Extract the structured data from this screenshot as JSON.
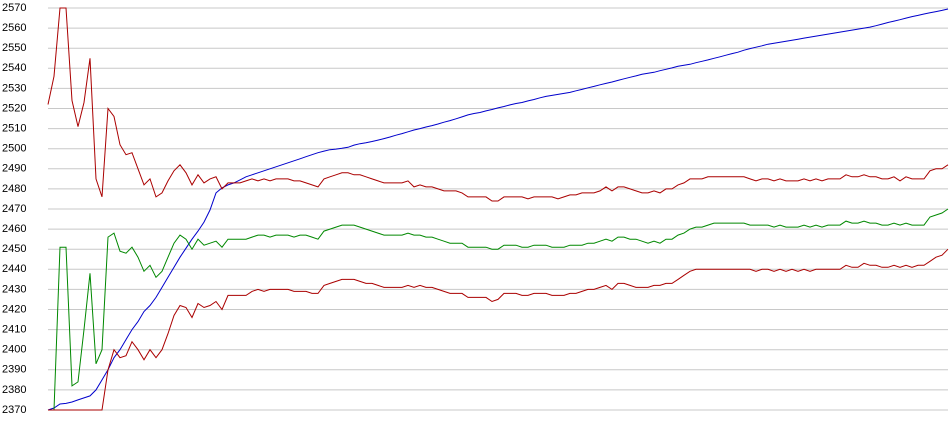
{
  "chart_data": {
    "type": "line",
    "title": "",
    "xlabel": "",
    "ylabel": "",
    "ylim": [
      2370,
      2570
    ],
    "y_ticks": [
      2370,
      2380,
      2390,
      2400,
      2410,
      2420,
      2430,
      2440,
      2450,
      2460,
      2470,
      2480,
      2490,
      2500,
      2510,
      2520,
      2530,
      2540,
      2550,
      2560,
      2570
    ],
    "grid": true,
    "legend": "none",
    "x": [
      0,
      1,
      2,
      3,
      4,
      5,
      6,
      7,
      8,
      9,
      10,
      11,
      12,
      13,
      14,
      15,
      16,
      17,
      18,
      19,
      20,
      21,
      22,
      23,
      24,
      25,
      26,
      27,
      28,
      29,
      30,
      31,
      32,
      33,
      34,
      35,
      36,
      37,
      38,
      39,
      40,
      41,
      42,
      43,
      44,
      45,
      46,
      47,
      48,
      49,
      50,
      51,
      52,
      53,
      54,
      55,
      56,
      57,
      58,
      59,
      60,
      61,
      62,
      63,
      64,
      65,
      66,
      67,
      68,
      69,
      70,
      71,
      72,
      73,
      74,
      75,
      76,
      77,
      78,
      79,
      80,
      81,
      82,
      83,
      84,
      85,
      86,
      87,
      88,
      89,
      90,
      91,
      92,
      93,
      94,
      95,
      96,
      97,
      98,
      99,
      100,
      101,
      102,
      103,
      104,
      105,
      106,
      107,
      108,
      109,
      110,
      111,
      112,
      113,
      114,
      115,
      116,
      117,
      118,
      119,
      120,
      121,
      122,
      123,
      124,
      125,
      126,
      127,
      128,
      129,
      130,
      131,
      132,
      133,
      134,
      135,
      136,
      137,
      138,
      139,
      140,
      141,
      142,
      143,
      144,
      145,
      146,
      147,
      148,
      149,
      150
    ],
    "series": [
      {
        "color": "#0000cc",
        "values": [
          2370.0,
          2371.0,
          2373.0,
          2373.3,
          2374.0,
          2375.0,
          2376.0,
          2377.0,
          2380.0,
          2385.0,
          2390.0,
          2396.0,
          2400.0,
          2405.0,
          2410.0,
          2414.0,
          2419.0,
          2422.0,
          2426.0,
          2431.0,
          2436.0,
          2441.0,
          2446.0,
          2450.5,
          2455.0,
          2459.0,
          2463.5,
          2469.5,
          2478.0,
          2480.5,
          2482.0,
          2483.0,
          2484.5,
          2486.0,
          2487.0,
          2488.0,
          2489.0,
          2490.0,
          2491.0,
          2492.0,
          2493.0,
          2494.0,
          2495.0,
          2496.0,
          2497.0,
          2498.0,
          2498.8,
          2499.5,
          2499.8,
          2500.2,
          2500.7,
          2501.8,
          2502.5,
          2503.0,
          2503.6,
          2504.3,
          2505.0,
          2505.8,
          2506.7,
          2507.5,
          2508.4,
          2509.3,
          2510.0,
          2510.8,
          2511.5,
          2512.3,
          2513.2,
          2514.0,
          2514.9,
          2515.8,
          2516.8,
          2517.5,
          2518.0,
          2518.8,
          2519.5,
          2520.3,
          2521.0,
          2521.8,
          2522.5,
          2523.0,
          2523.8,
          2524.5,
          2525.3,
          2526.0,
          2526.5,
          2527.0,
          2527.5,
          2528.0,
          2528.8,
          2529.5,
          2530.3,
          2531.0,
          2531.8,
          2532.5,
          2533.2,
          2534.0,
          2534.8,
          2535.5,
          2536.2,
          2537.0,
          2537.5,
          2538.0,
          2538.8,
          2539.5,
          2540.2,
          2541.0,
          2541.5,
          2542.0,
          2542.8,
          2543.5,
          2544.2,
          2545.0,
          2545.7,
          2546.5,
          2547.3,
          2548.0,
          2549.0,
          2549.8,
          2550.5,
          2551.2,
          2552.0,
          2552.5,
          2553.0,
          2553.5,
          2554.0,
          2554.5,
          2555.0,
          2555.5,
          2556.0,
          2556.5,
          2557.0,
          2557.5,
          2558.0,
          2558.5,
          2559.0,
          2559.5,
          2560.0,
          2560.5,
          2561.2,
          2562.0,
          2562.8,
          2563.5,
          2564.2,
          2565.0,
          2565.7,
          2566.3,
          2567.0,
          2567.6,
          2568.2,
          2568.8,
          2569.5
        ]
      },
      {
        "color": "#aa0000",
        "values": [
          2522,
          2536,
          2570,
          2570,
          2524,
          2511,
          2523,
          2545,
          2485,
          2476,
          2520,
          2516,
          2502,
          2497,
          2498,
          2490,
          2482,
          2485,
          2476,
          2478,
          2484,
          2489,
          2492,
          2488,
          2482,
          2487,
          2483,
          2485,
          2486,
          2480,
          2483,
          2483,
          2483,
          2484,
          2485,
          2484,
          2485,
          2484,
          2485,
          2485,
          2485,
          2484,
          2484,
          2483,
          2482,
          2481,
          2485,
          2486,
          2487,
          2488,
          2488,
          2487,
          2487,
          2486,
          2485,
          2484,
          2483,
          2483,
          2483,
          2483,
          2484,
          2481,
          2482,
          2481,
          2481,
          2480,
          2479,
          2479,
          2479,
          2478,
          2476,
          2476,
          2476,
          2476,
          2474,
          2474,
          2476,
          2476,
          2476,
          2476,
          2475,
          2476,
          2476,
          2476,
          2476,
          2475,
          2476,
          2477,
          2477,
          2478,
          2478,
          2478,
          2479,
          2481,
          2479,
          2481,
          2481,
          2480,
          2479,
          2478,
          2478,
          2479,
          2478,
          2480,
          2480,
          2482,
          2483,
          2485,
          2485,
          2485,
          2486,
          2486,
          2486,
          2486,
          2486,
          2486,
          2486,
          2485,
          2484,
          2485,
          2485,
          2484,
          2485,
          2484,
          2484,
          2484,
          2485,
          2484,
          2485,
          2484,
          2485,
          2485,
          2485,
          2487,
          2486,
          2486,
          2487,
          2486,
          2486,
          2485,
          2485,
          2486,
          2484,
          2486,
          2485,
          2485,
          2485,
          2489,
          2490,
          2490,
          2492
        ]
      },
      {
        "color": "#008800",
        "values": [
          2370,
          2370,
          2451,
          2451,
          2382,
          2384,
          2410,
          2438,
          2393,
          2400,
          2456,
          2458,
          2449,
          2448,
          2451,
          2446,
          2439,
          2442,
          2436,
          2439,
          2446,
          2453,
          2457,
          2455,
          2450,
          2455,
          2452,
          2453,
          2454,
          2451,
          2455,
          2455,
          2455,
          2455,
          2456,
          2457,
          2457,
          2456,
          2457,
          2457,
          2457,
          2456,
          2457,
          2457,
          2456,
          2455,
          2459,
          2460,
          2461,
          2462,
          2462,
          2462,
          2461,
          2460,
          2459,
          2458,
          2457,
          2457,
          2457,
          2457,
          2458,
          2457,
          2457,
          2456,
          2456,
          2455,
          2454,
          2453,
          2453,
          2453,
          2451,
          2451,
          2451,
          2451,
          2450,
          2450,
          2452,
          2452,
          2452,
          2451,
          2451,
          2452,
          2452,
          2452,
          2451,
          2451,
          2451,
          2452,
          2452,
          2452,
          2453,
          2453,
          2454,
          2455,
          2454,
          2456,
          2456,
          2455,
          2455,
          2454,
          2453,
          2454,
          2453,
          2455,
          2455,
          2457,
          2458,
          2460,
          2461,
          2461,
          2462,
          2463,
          2463,
          2463,
          2463,
          2463,
          2463,
          2462,
          2462,
          2462,
          2462,
          2461,
          2462,
          2461,
          2461,
          2461,
          2462,
          2461,
          2462,
          2461,
          2462,
          2462,
          2462,
          2464,
          2463,
          2463,
          2464,
          2463,
          2463,
          2462,
          2462,
          2463,
          2462,
          2463,
          2462,
          2462,
          2462,
          2466,
          2467,
          2468,
          2470
        ]
      },
      {
        "color": "#aa0000",
        "values": [
          2370,
          2370,
          2370,
          2370,
          2370,
          2370,
          2370,
          2370,
          2370,
          2370,
          2390,
          2400,
          2396,
          2397,
          2404,
          2400,
          2395,
          2400,
          2396,
          2400,
          2408,
          2417,
          2422,
          2421,
          2416,
          2423,
          2421,
          2422,
          2424,
          2420,
          2427,
          2427,
          2427,
          2427,
          2429,
          2430,
          2429,
          2430,
          2430,
          2430,
          2430,
          2429,
          2429,
          2429,
          2428,
          2428,
          2432,
          2433,
          2434,
          2435,
          2435,
          2435,
          2434,
          2433,
          2433,
          2432,
          2431,
          2431,
          2431,
          2431,
          2432,
          2431,
          2432,
          2431,
          2431,
          2430,
          2429,
          2428,
          2428,
          2428,
          2426,
          2426,
          2426,
          2426,
          2424,
          2425,
          2428,
          2428,
          2428,
          2427,
          2427,
          2428,
          2428,
          2428,
          2427,
          2427,
          2427,
          2428,
          2428,
          2429,
          2430,
          2430,
          2431,
          2432,
          2430,
          2433,
          2433,
          2432,
          2431,
          2431,
          2431,
          2432,
          2432,
          2433,
          2433,
          2435,
          2437,
          2439,
          2440,
          2440,
          2440,
          2440,
          2440,
          2440,
          2440,
          2440,
          2440,
          2440,
          2439,
          2440,
          2440,
          2439,
          2440,
          2439,
          2440,
          2439,
          2440,
          2439,
          2440,
          2440,
          2440,
          2440,
          2440,
          2442,
          2441,
          2441,
          2443,
          2442,
          2442,
          2441,
          2441,
          2442,
          2441,
          2442,
          2441,
          2442,
          2442,
          2444,
          2446,
          2447,
          2450
        ]
      }
    ]
  }
}
